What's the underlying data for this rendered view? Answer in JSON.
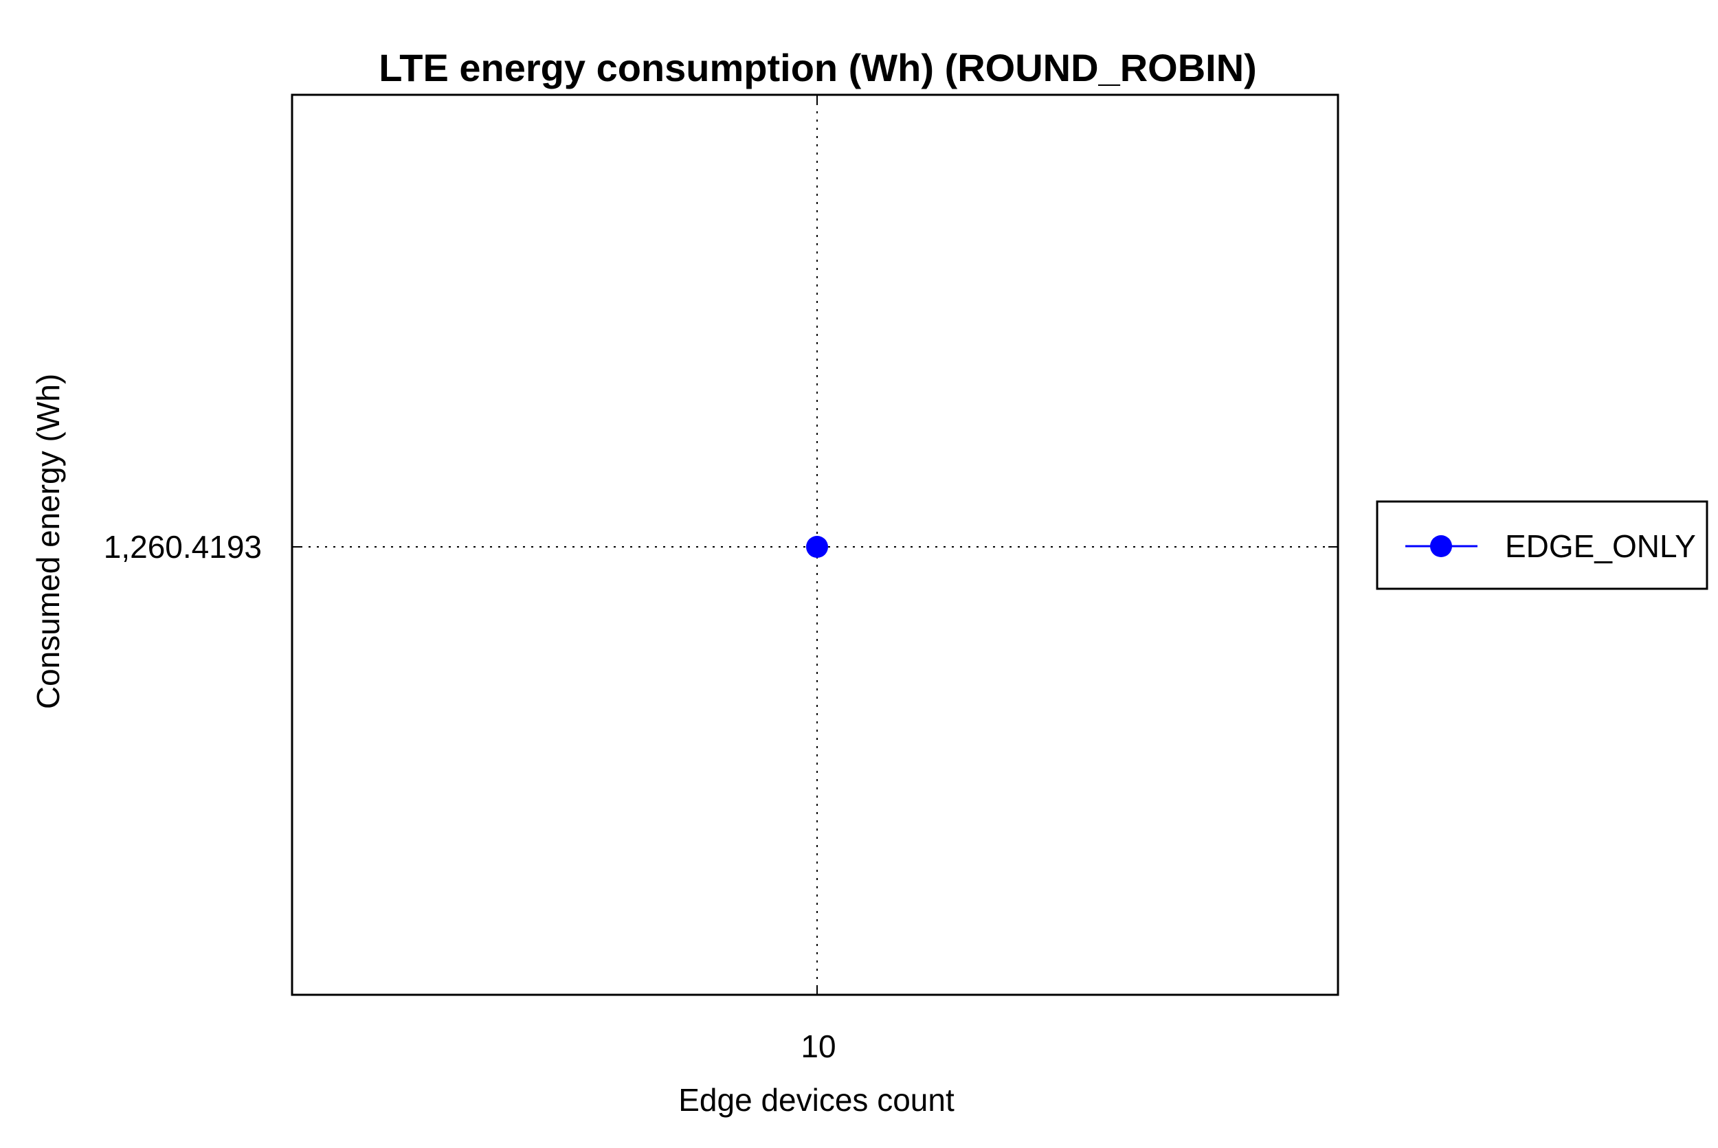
{
  "chart_data": {
    "type": "line",
    "title": "LTE energy consumption (Wh) (ROUND_ROBIN)",
    "xlabel": "Edge devices count",
    "ylabel": "Consumed energy (Wh)",
    "x": [
      10
    ],
    "x_tick_labels": [
      "10"
    ],
    "y_tick_labels": [
      "1,260.4193"
    ],
    "series": [
      {
        "name": "EDGE_ONLY",
        "color": "#0000ff",
        "marker": "circle",
        "values": [
          1260.4193
        ]
      }
    ],
    "grid": true,
    "grid_style": "dotted",
    "legend_position": "right"
  }
}
